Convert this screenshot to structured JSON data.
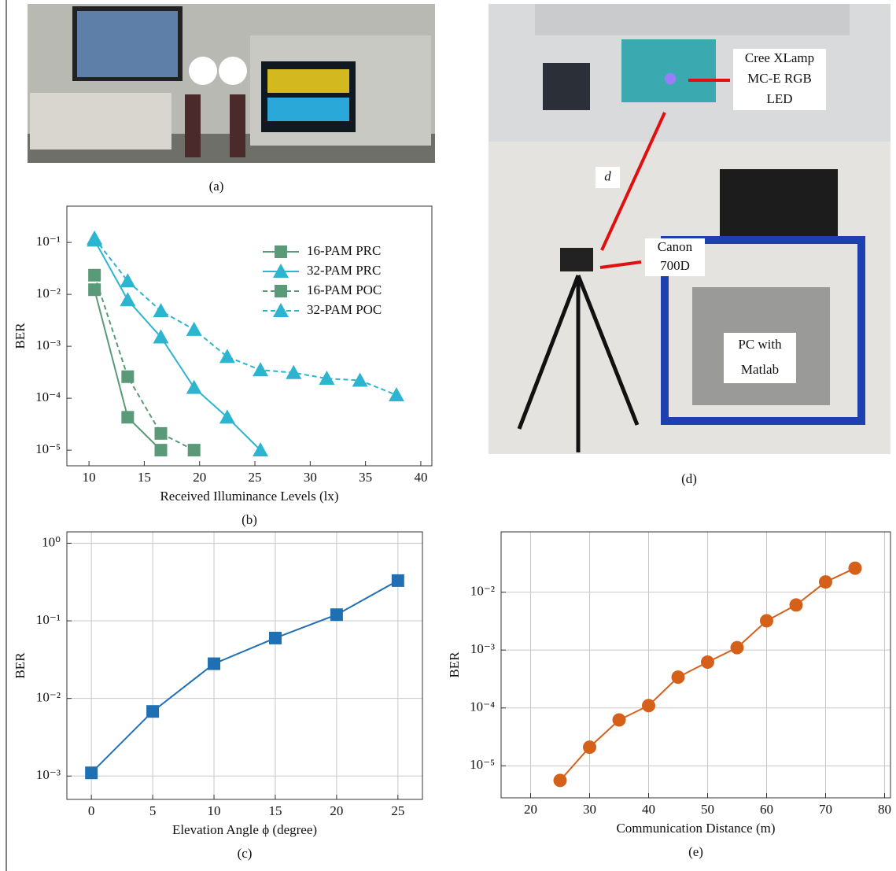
{
  "photos": {
    "a": {
      "caption": "(a)"
    },
    "d": {
      "caption": "(d)",
      "labels": [
        {
          "lines": [
            "Cree XLamp",
            "MC-E RGB",
            "LED"
          ]
        },
        {
          "lines": [
            "d"
          ]
        },
        {
          "lines": [
            "Canon",
            "700D"
          ]
        },
        {
          "lines": [
            "PC with",
            "Matlab"
          ]
        }
      ]
    }
  },
  "chart_data": [
    {
      "type": "line",
      "caption": "(b)",
      "xlabel": "Received Illuminance Levels (lx)",
      "ylabel": "BER",
      "log_y": true,
      "grid": false,
      "legend": "upper right",
      "xlim": [
        8,
        41
      ],
      "ylim": [
        5e-06,
        0.5
      ],
      "xticks": [
        10,
        15,
        20,
        25,
        30,
        35,
        40
      ],
      "yticks": [
        {
          "value": 1e-05,
          "label": "10⁻⁵"
        },
        {
          "value": 0.0001,
          "label": "10⁻⁴"
        },
        {
          "value": 0.001,
          "label": "10⁻³"
        },
        {
          "value": 0.01,
          "label": "10⁻²"
        },
        {
          "value": 0.1,
          "label": "10⁻¹"
        }
      ],
      "series": [
        {
          "name": "16-PAM PRC",
          "color": "#5a9a78",
          "marker": "square",
          "dash": false,
          "x": [
            10.5,
            13.5,
            16.5
          ],
          "values": [
            0.0123,
            4.3e-05,
            1e-05
          ]
        },
        {
          "name": "32-PAM PRC",
          "color": "#2db5d0",
          "marker": "triangle",
          "dash": false,
          "x": [
            10.5,
            13.5,
            16.5,
            19.5,
            22.5,
            25.5
          ],
          "values": [
            0.11,
            0.0078,
            0.0015,
            0.00016,
            4.3e-05,
            1e-05
          ]
        },
        {
          "name": "16-PAM POC",
          "color": "#5a9a78",
          "marker": "square",
          "dash": true,
          "x": [
            10.5,
            13.5,
            16.5,
            19.5
          ],
          "values": [
            0.0234,
            0.00026,
            2.1e-05,
            1e-05
          ]
        },
        {
          "name": "32-PAM POC",
          "color": "#2db5d0",
          "marker": "triangle",
          "dash": true,
          "x": [
            10.5,
            13.5,
            16.5,
            19.5,
            22.5,
            25.5,
            28.5,
            31.5,
            34.5,
            37.8
          ],
          "values": [
            0.12,
            0.018,
            0.0048,
            0.0021,
            0.00063,
            0.00035,
            0.00031,
            0.00024,
            0.00022,
            0.000115
          ]
        }
      ]
    },
    {
      "type": "line",
      "caption": "(c)",
      "xlabel": "Elevation Angle ϕ (degree)",
      "ylabel": "BER",
      "log_y": true,
      "grid": true,
      "xlim": [
        -2,
        27
      ],
      "ylim": [
        0.0005,
        1.4
      ],
      "xticks": [
        0,
        5,
        10,
        15,
        20,
        25
      ],
      "yticks": [
        {
          "value": 0.001,
          "label": "10⁻³"
        },
        {
          "value": 0.01,
          "label": "10⁻²"
        },
        {
          "value": 0.1,
          "label": "10⁻¹"
        },
        {
          "value": 1,
          "label": "10⁰"
        }
      ],
      "series": [
        {
          "name": "BER",
          "color": "#1f6fb5",
          "marker": "square",
          "dash": false,
          "x": [
            0,
            5,
            10,
            15,
            20,
            25
          ],
          "values": [
            0.0011,
            0.0068,
            0.028,
            0.06,
            0.12,
            0.33
          ]
        }
      ]
    },
    {
      "type": "line",
      "caption": "(e)",
      "xlabel": "Communication Distance (m)",
      "ylabel": "BER",
      "log_y": true,
      "grid": true,
      "xlim": [
        15,
        81
      ],
      "ylim": [
        2.8e-06,
        0.11
      ],
      "xticks": [
        20,
        30,
        40,
        50,
        60,
        70,
        80
      ],
      "yticks": [
        {
          "value": 1e-05,
          "label": "10⁻⁵"
        },
        {
          "value": 0.0001,
          "label": "10⁻⁴"
        },
        {
          "value": 0.001,
          "label": "10⁻³"
        },
        {
          "value": 0.01,
          "label": "10⁻²"
        }
      ],
      "series": [
        {
          "name": "BER",
          "color": "#d4601a",
          "marker": "circle",
          "dash": false,
          "x": [
            25,
            30,
            35,
            40,
            45,
            50,
            55,
            60,
            65,
            70,
            75
          ],
          "values": [
            5.6e-06,
            2.1e-05,
            6.2e-05,
            0.00011,
            0.00034,
            0.00062,
            0.0011,
            0.0032,
            0.006,
            0.015,
            0.026
          ]
        }
      ]
    }
  ]
}
